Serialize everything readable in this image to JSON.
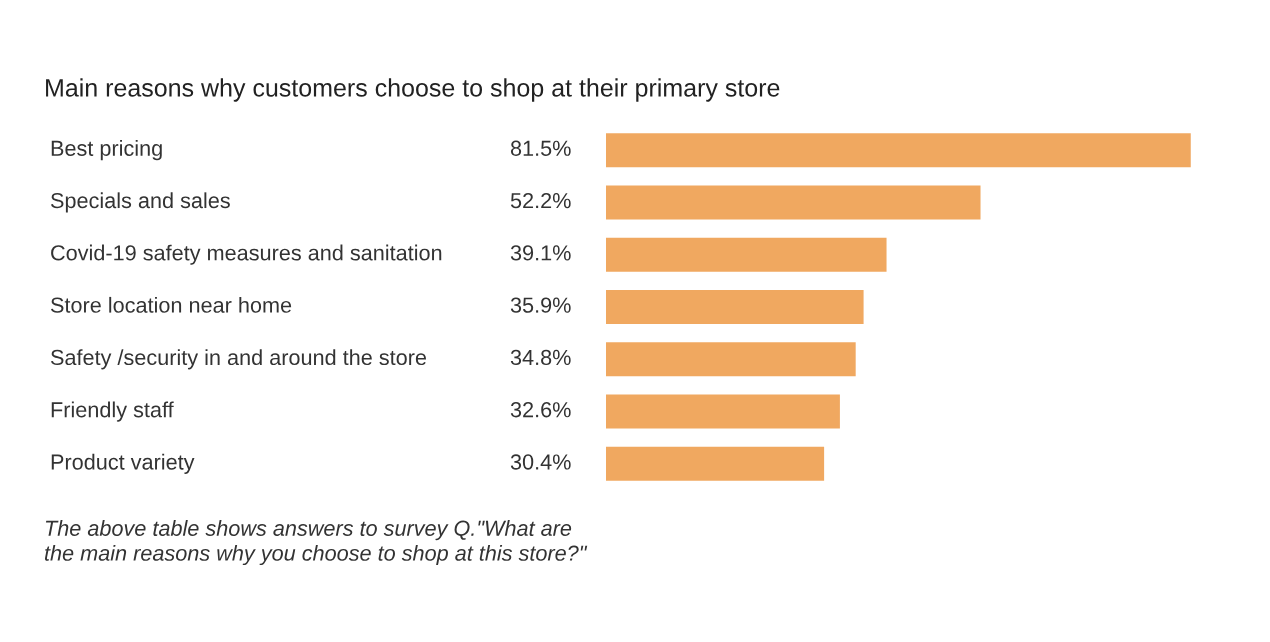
{
  "chart_data": {
    "type": "bar",
    "orientation": "horizontal",
    "title": "Main reasons why customers choose to shop at their primary store",
    "categories": [
      "Best pricing",
      "Specials and sales",
      "Covid-19 safety measures and sanitation",
      "Store location near home",
      "Safety /security in and around the store",
      "Friendly staff",
      "Product variety"
    ],
    "values": [
      81.5,
      52.2,
      39.1,
      35.9,
      34.8,
      32.6,
      30.4
    ],
    "value_labels": [
      "81.5%",
      "52.2%",
      "39.1%",
      "35.9%",
      "34.8%",
      "32.6%",
      "30.4%"
    ],
    "color": "#f0a860",
    "annotations": [
      "The above table shows answers to survey Q.\"What are\nthe main reasons why you choose to shop at this store?\""
    ]
  }
}
